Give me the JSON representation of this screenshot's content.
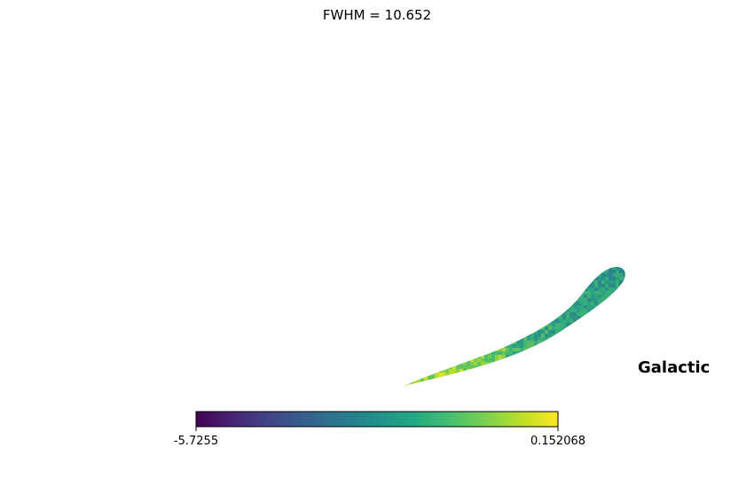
{
  "chart_data": {
    "type": "heatmap",
    "projection": "mollweide",
    "title": "FWHM = 10.652",
    "coord_label": "Galactic",
    "colormap": "viridis",
    "colorbar": {
      "min": -5.7255,
      "max": 0.152068,
      "min_label": "-5.7255",
      "max_label": "0.152068",
      "orientation": "horizontal",
      "placement": "bottom"
    },
    "grid": false,
    "mask_description_shown": false
  }
}
